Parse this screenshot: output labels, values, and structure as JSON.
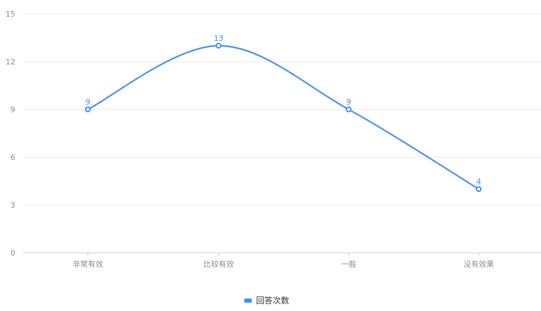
{
  "chart_data": {
    "type": "line",
    "categories": [
      "非常有效",
      "比较有效",
      "一般",
      "没有效果"
    ],
    "series": [
      {
        "name": "回答次数",
        "values": [
          9,
          13,
          9,
          4
        ],
        "color": "#4a90f0"
      }
    ],
    "ylim": [
      0,
      15
    ],
    "yticks": [
      0,
      3,
      6,
      9,
      12,
      15
    ],
    "grid": true,
    "smooth": true,
    "show_data_labels": true,
    "legend": {
      "position": "bottom-center"
    }
  },
  "colors": {
    "grid": "#e9e9e9",
    "axis": "#cccccc",
    "tick_text": "#8c8c8c",
    "label_text": "#3d8ef0"
  }
}
